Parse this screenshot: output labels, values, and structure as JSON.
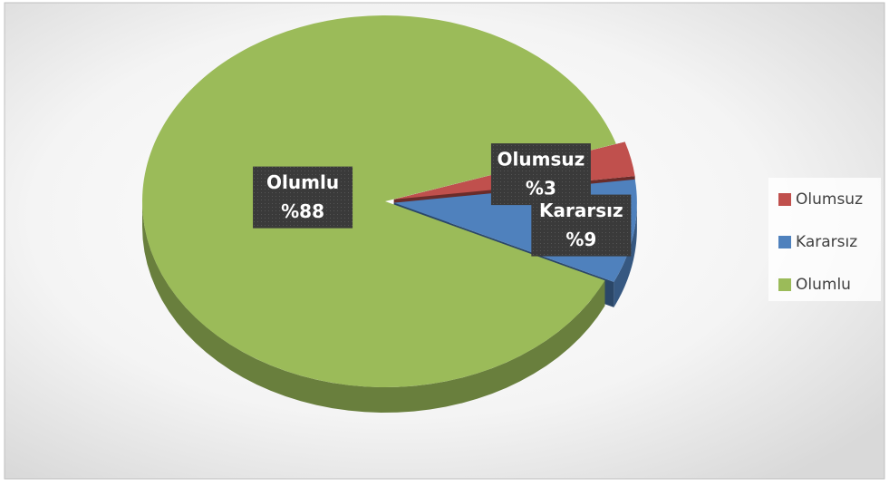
{
  "chart_data": {
    "type": "pie",
    "categories": [
      "Olumsuz",
      "Kararsız",
      "Olumlu"
    ],
    "values": [
      3,
      9,
      88
    ],
    "value_labels": [
      "%3",
      "%9",
      "%88"
    ],
    "colors": [
      "#c0504d",
      "#4f81bd",
      "#9bbb59"
    ],
    "legend": "right"
  }
}
